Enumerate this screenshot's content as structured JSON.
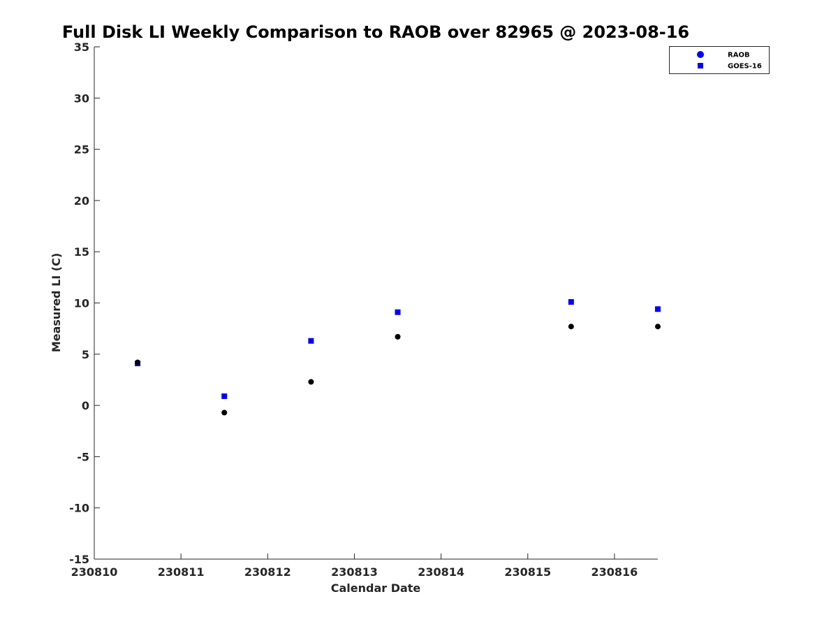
{
  "chart_data": {
    "type": "scatter",
    "title": "Full Disk LI Weekly Comparison to RAOB over 82965 @ 2023-08-16",
    "xlabel": "Calendar Date",
    "ylabel": "Measured LI (C)",
    "xlim": [
      230810,
      230816.5
    ],
    "ylim": [
      -15,
      35
    ],
    "x_ticks": [
      230810,
      230811,
      230812,
      230813,
      230814,
      230815,
      230816
    ],
    "x_tick_labels": [
      "230810",
      "230811",
      "230812",
      "230813",
      "230814",
      "230815",
      "230816"
    ],
    "y_ticks": [
      -15,
      -10,
      -5,
      0,
      5,
      10,
      15,
      20,
      25,
      30,
      35
    ],
    "y_tick_labels": [
      "-15",
      "-10",
      "-5",
      "0",
      "5",
      "10",
      "15",
      "20",
      "25",
      "30",
      "35"
    ],
    "grid": false,
    "legend_position": "top-right, outside plot",
    "series": [
      {
        "name": "RAOB",
        "marker": "circle",
        "legend_color": "#0000ff",
        "color": "#000000",
        "x": [
          230810.5,
          230811.5,
          230812.5,
          230813.5,
          230815.5,
          230816.5
        ],
        "y": [
          4.2,
          -0.7,
          2.3,
          6.7,
          7.7,
          7.7
        ]
      },
      {
        "name": "GOES-16",
        "marker": "square",
        "color": "#0000ff",
        "x": [
          230810.5,
          230811.5,
          230812.5,
          230813.5,
          230815.5,
          230816.5
        ],
        "y": [
          4.1,
          0.9,
          6.3,
          9.1,
          10.1,
          9.4
        ]
      }
    ]
  }
}
